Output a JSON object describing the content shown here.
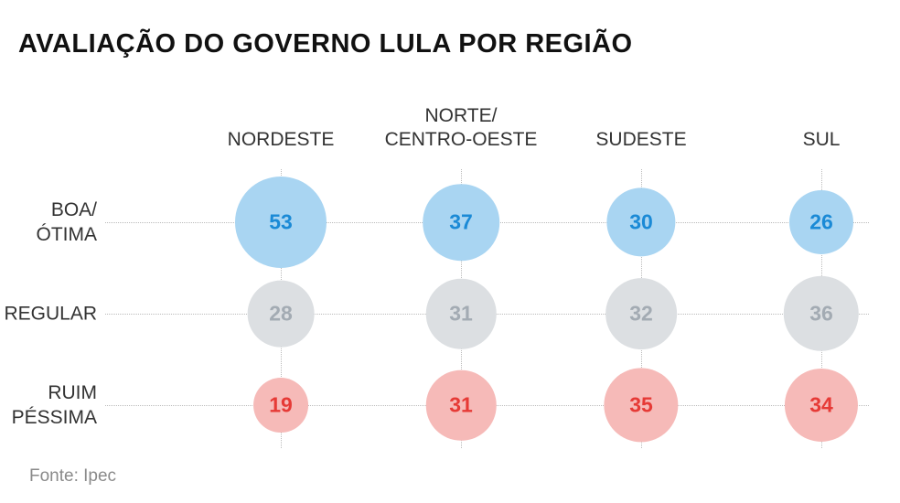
{
  "chart_data": {
    "type": "bubble-grid",
    "title": "AVALIAÇÃO DO GOVERNO LULA POR REGIÃO",
    "categories": [
      "NORDESTE",
      "NORTE/\nCENTRO-OESTE",
      "SUDESTE",
      "SUL"
    ],
    "series": [
      {
        "name": "BOA/\nÓTIMA",
        "color": "#a9d5f2",
        "label_color": "#1b8ad6",
        "values": [
          53,
          37,
          30,
          26
        ]
      },
      {
        "name": "REGULAR",
        "color": "#dcdfe2",
        "label_color": "#a3abb3",
        "values": [
          28,
          31,
          32,
          36
        ]
      },
      {
        "name": "RUIM\nPÉSSIMA",
        "color": "#f6bab8",
        "label_color": "#e63a36",
        "values": [
          19,
          31,
          35,
          34
        ]
      }
    ],
    "grid": true,
    "source": "Fonte: Ipec"
  }
}
